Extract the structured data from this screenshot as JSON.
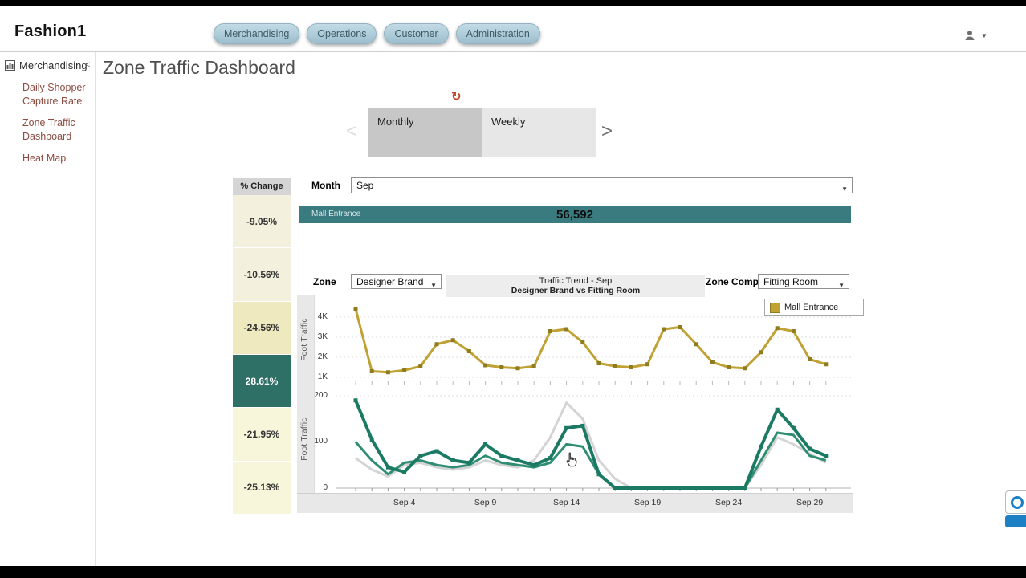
{
  "app": {
    "logo": "Fashion1"
  },
  "header": {
    "nav_items": [
      "Merchandising",
      "Operations",
      "Customer",
      "Administration"
    ],
    "user_caret": "▼"
  },
  "sidebar": {
    "section_label": "Merchandising",
    "collapse_glyph": "<",
    "items": [
      "Daily Shopper Capture Rate",
      "Zone Traffic Dashboard",
      "Heat Map"
    ]
  },
  "page": {
    "title": "Zone Traffic Dashboard"
  },
  "carousel": {
    "refresh_glyph": "↻",
    "prev_glyph": "<",
    "next_glyph": ">",
    "tabs": [
      {
        "label": "Monthly",
        "selected": true
      },
      {
        "label": "Weekly",
        "selected": false
      }
    ]
  },
  "pct_change": {
    "header": "% Change",
    "cells": [
      {
        "value": "-9.05%",
        "bg": "#f3f0dd",
        "fg": "#333333"
      },
      {
        "value": "-10.56%",
        "bg": "#f3f0dd",
        "fg": "#333333"
      },
      {
        "value": "-24.56%",
        "bg": "#efe9c0",
        "fg": "#333333"
      },
      {
        "value": "28.61%",
        "bg": "#2e6f66",
        "fg": "#ffffff"
      },
      {
        "value": "-21.95%",
        "bg": "#f8f6da",
        "fg": "#333333"
      },
      {
        "value": "-25.13%",
        "bg": "#f8f6da",
        "fg": "#333333"
      }
    ]
  },
  "filters": {
    "month_label": "Month",
    "month_value": "Sep",
    "zone_label": "Zone",
    "zone_value": "Designer Brand",
    "comp_label": "Zone Comp",
    "comp_value": "Fitting Room"
  },
  "total_bar": {
    "label": "Mall Entrance",
    "value": "56,592",
    "color": "#3a7b80"
  },
  "trend_header": {
    "line1": "Traffic Trend - Sep",
    "line2": "Designer Brand vs Fitting Room"
  },
  "legend": {
    "label": "Mall Entrance",
    "color": "#c0a133"
  },
  "chart_data": [
    {
      "type": "line",
      "title": "Mall Entrance daily foot traffic - Sep",
      "ylabel": "Foot Traffic",
      "yticks": [
        "4K",
        "3K",
        "2K",
        "1K"
      ],
      "ylim": [
        500,
        4600
      ],
      "x": [
        1,
        2,
        3,
        4,
        5,
        6,
        7,
        8,
        9,
        10,
        11,
        12,
        13,
        14,
        15,
        16,
        17,
        18,
        19,
        20,
        21,
        22,
        23,
        24,
        25,
        26,
        27,
        28,
        29,
        30
      ],
      "series": [
        {
          "name": "Mall Entrance",
          "color": "#c0a133",
          "marker_color": "#8f7c1f",
          "values": [
            4400,
            1300,
            1250,
            1350,
            1550,
            2650,
            2850,
            2300,
            1600,
            1500,
            1450,
            1550,
            3300,
            3400,
            2750,
            1700,
            1550,
            1500,
            1650,
            3400,
            3500,
            2650,
            1750,
            1500,
            1450,
            2250,
            3450,
            3300,
            1900,
            1650
          ]
        }
      ]
    },
    {
      "type": "line",
      "title": "Designer Brand vs Fitting Room daily foot traffic - Sep",
      "ylabel": "Foot Traffic",
      "yticks": [
        "200",
        "100",
        "0"
      ],
      "ylim": [
        0,
        210
      ],
      "x": [
        1,
        2,
        3,
        4,
        5,
        6,
        7,
        8,
        9,
        10,
        11,
        12,
        13,
        14,
        15,
        16,
        17,
        18,
        19,
        20,
        21,
        22,
        23,
        24,
        25,
        26,
        27,
        28,
        29,
        30
      ],
      "x_tick_days": [
        4,
        9,
        14,
        19,
        24,
        29
      ],
      "x_tick_labels": [
        "Sep 4",
        "Sep 9",
        "Sep 14",
        "Sep 19",
        "Sep 24",
        "Sep 29"
      ],
      "series": [
        {
          "name": "unlabeled-gray-trend",
          "color": "#d4d4d4",
          "values": [
            65,
            40,
            25,
            50,
            55,
            45,
            40,
            45,
            60,
            50,
            45,
            60,
            110,
            185,
            150,
            60,
            20,
            0,
            0,
            0,
            0,
            0,
            0,
            0,
            0,
            50,
            110,
            95,
            75,
            55
          ]
        },
        {
          "name": "Fitting Room",
          "color": "#2f8d74",
          "values": [
            100,
            60,
            30,
            55,
            60,
            50,
            45,
            50,
            70,
            55,
            50,
            45,
            55,
            95,
            90,
            30,
            0,
            0,
            0,
            0,
            0,
            0,
            0,
            0,
            0,
            60,
            120,
            115,
            70,
            60
          ]
        },
        {
          "name": "Designer Brand",
          "color": "#1b7a63",
          "marker_color": "#1b7a63",
          "values": [
            190,
            105,
            45,
            35,
            70,
            80,
            60,
            55,
            95,
            70,
            60,
            50,
            65,
            130,
            135,
            30,
            0,
            0,
            0,
            0,
            0,
            0,
            0,
            0,
            0,
            90,
            170,
            130,
            85,
            70
          ]
        }
      ]
    }
  ]
}
